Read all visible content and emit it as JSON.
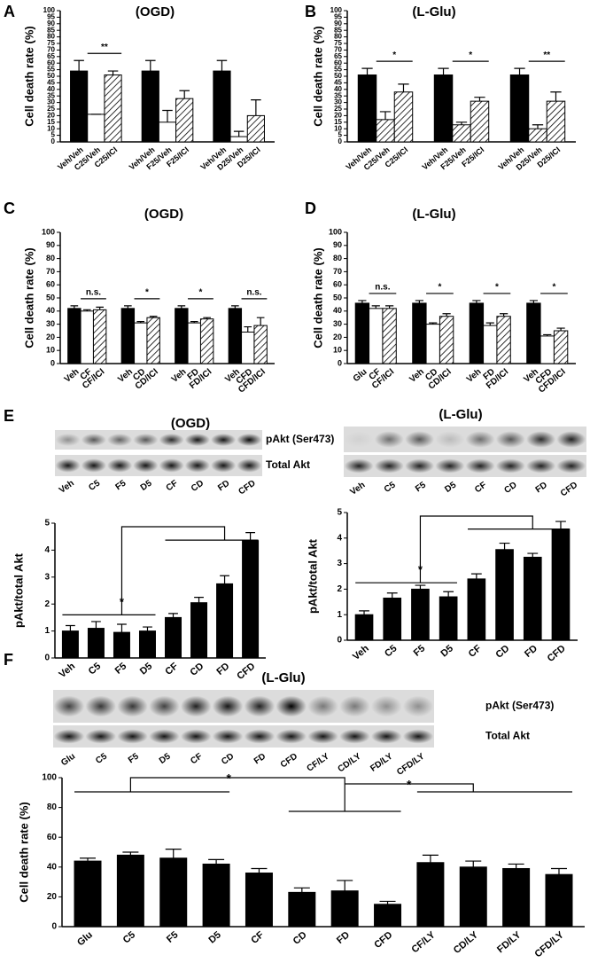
{
  "panel_labels": [
    "A",
    "B",
    "C",
    "D",
    "E",
    "F"
  ],
  "chart_data": [
    {
      "type": "bar",
      "title": "(OGD)",
      "ylabel": "Cell death rate (%)",
      "categories": [
        "Veh/Veh",
        "C25/Veh",
        "C25/ICI",
        "Veh/Veh",
        "F25/Veh",
        "F25/ICI",
        "Veh/Veh",
        "D25/Veh",
        "D25/ICI"
      ],
      "values": [
        54,
        21,
        51,
        54,
        15,
        33,
        54,
        4,
        20
      ],
      "errors": [
        8,
        0,
        3,
        8,
        9,
        6,
        8,
        4,
        12
      ],
      "bar_styles": [
        "black",
        "white",
        "hatched"
      ],
      "ylim": [
        0,
        100
      ],
      "yticks": [
        0,
        5,
        10,
        15,
        20,
        25,
        30,
        35,
        40,
        45,
        50,
        55,
        60,
        65,
        70,
        75,
        80,
        85,
        90,
        95,
        100
      ],
      "annotations": [
        "**"
      ]
    },
    {
      "type": "bar",
      "title": "(L-Glu)",
      "ylabel": "Cell death rate (%)",
      "categories": [
        "Veh/Veh",
        "C25/Veh",
        "C25/ICI",
        "Veh/Veh",
        "F25/Veh",
        "F25/ICI",
        "Veh/Veh",
        "D25/Veh",
        "D25/ICI"
      ],
      "values": [
        51,
        17,
        38,
        51,
        13,
        31,
        51,
        10,
        31
      ],
      "errors": [
        5,
        6,
        6,
        5,
        2,
        3,
        5,
        3,
        7
      ],
      "bar_styles": [
        "black",
        "hatched",
        "hatched"
      ],
      "ylim": [
        0,
        100
      ],
      "yticks": [
        0,
        5,
        10,
        15,
        20,
        25,
        30,
        35,
        40,
        45,
        50,
        55,
        60,
        65,
        70,
        75,
        80,
        85,
        90,
        95,
        100
      ],
      "annotations": [
        "*",
        "*",
        "**"
      ]
    },
    {
      "type": "bar",
      "title": "(OGD)",
      "ylabel": "Cell death rate (%)",
      "categories": [
        "Veh",
        "CF",
        "CF/ICI",
        "Veh",
        "CD",
        "CD/ICI",
        "Veh",
        "FD",
        "FD/ICI",
        "Veh",
        "CFD",
        "CFD/ICI"
      ],
      "values": [
        42,
        40,
        41,
        42,
        31,
        35,
        42,
        31,
        34,
        42,
        24,
        29
      ],
      "errors": [
        2,
        1,
        2,
        2,
        1,
        1,
        2,
        1,
        1,
        2,
        4,
        6
      ],
      "bar_styles": [
        "black",
        "white",
        "hatched"
      ],
      "ylim": [
        0,
        100
      ],
      "yticks": [
        0,
        10,
        20,
        30,
        40,
        50,
        60,
        70,
        80,
        90,
        100
      ],
      "annotations": [
        "n.s.",
        "*",
        "*",
        "n.s."
      ]
    },
    {
      "type": "bar",
      "title": "(L-Glu)",
      "ylabel": "Cell death rate (%)",
      "categories": [
        "Glu",
        "CF",
        "CF/ICI",
        "Veh",
        "CD",
        "CD/ICI",
        "Veh",
        "FD",
        "FD/ICI",
        "Veh",
        "CFD",
        "CFD/ICI"
      ],
      "values": [
        46,
        42,
        42,
        46,
        30,
        36,
        46,
        29,
        36,
        46,
        21,
        25
      ],
      "errors": [
        2,
        2,
        2,
        2,
        1,
        2,
        2,
        2,
        2,
        2,
        1,
        2
      ],
      "bar_styles": [
        "black",
        "white",
        "hatched"
      ],
      "ylim": [
        0,
        100
      ],
      "yticks": [
        0,
        10,
        20,
        30,
        40,
        50,
        60,
        70,
        80,
        90,
        100
      ],
      "annotations": [
        "n.s.",
        "*",
        "*",
        "*"
      ]
    },
    {
      "type": "bar",
      "ylabel": "pAkt/total Akt",
      "categories": [
        "Veh",
        "C5",
        "F5",
        "D5",
        "CF",
        "CD",
        "FD",
        "CFD"
      ],
      "values": [
        1.0,
        1.1,
        0.95,
        1.0,
        1.5,
        2.05,
        2.75,
        4.35
      ],
      "errors": [
        0.2,
        0.25,
        0.3,
        0.15,
        0.15,
        0.2,
        0.3,
        0.3
      ],
      "bar_styles": [
        "black"
      ],
      "ylim": [
        0,
        5
      ],
      "yticks": [
        0,
        1,
        2,
        3,
        4,
        5
      ],
      "annotations": [
        "*"
      ]
    },
    {
      "type": "bar",
      "ylabel": "pAkt/total Akt",
      "categories": [
        "Veh",
        "C5",
        "F5",
        "D5",
        "CF",
        "CD",
        "FD",
        "CFD"
      ],
      "values": [
        1.0,
        1.65,
        2.0,
        1.7,
        2.4,
        3.55,
        3.25,
        4.35
      ],
      "errors": [
        0.15,
        0.2,
        0.15,
        0.2,
        0.2,
        0.25,
        0.15,
        0.3
      ],
      "bar_styles": [
        "black"
      ],
      "ylim": [
        0,
        5
      ],
      "yticks": [
        0,
        1,
        2,
        3,
        4,
        5
      ],
      "annotations": [
        "*"
      ]
    },
    {
      "type": "bar",
      "ylabel": "Cell death rate (%)",
      "categories": [
        "Glu",
        "C5",
        "F5",
        "D5",
        "CF",
        "CD",
        "FD",
        "CFD",
        "CF/LY",
        "CD/LY",
        "FD/LY",
        "CFD/LY"
      ],
      "values": [
        44,
        48,
        46,
        42,
        36,
        23,
        24,
        15,
        43,
        40,
        39,
        35
      ],
      "errors": [
        2,
        2,
        6,
        3,
        3,
        3,
        7,
        2,
        5,
        4,
        3,
        4
      ],
      "bar_styles": [
        "black"
      ],
      "ylim": [
        0,
        100
      ],
      "yticks": [
        0,
        20,
        40,
        60,
        80,
        100
      ],
      "annotations": [
        "*",
        "*"
      ]
    }
  ],
  "blots": [
    {
      "title": "(OGD)",
      "row_labels": [
        "pAkt (Ser473)",
        "Total Akt"
      ],
      "lanes": [
        "Veh",
        "C5",
        "F5",
        "D5",
        "CF",
        "CD",
        "FD",
        "CFD"
      ]
    },
    {
      "title": "(L-Glu)",
      "lanes": [
        "Veh",
        "C5",
        "F5",
        "D5",
        "CF",
        "CD",
        "FD",
        "CFD"
      ]
    },
    {
      "title": "(L-Glu)",
      "row_labels": [
        "pAkt (Ser473)",
        "Total Akt"
      ],
      "lanes": [
        "Glu",
        "C5",
        "F5",
        "D5",
        "CF",
        "CD",
        "FD",
        "CFD",
        "CF/LY",
        "CD/LY",
        "FD/LY",
        "CFD/LY"
      ]
    }
  ]
}
